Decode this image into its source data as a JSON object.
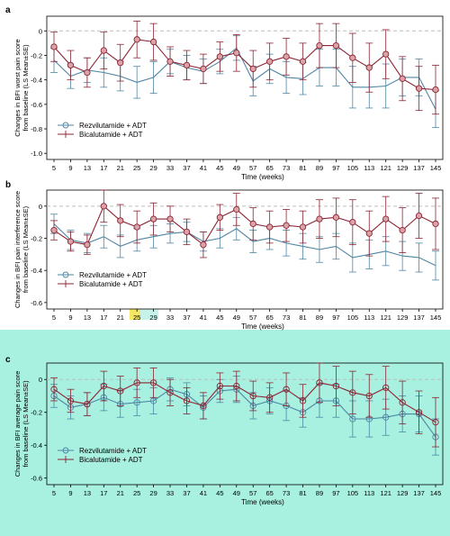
{
  "colors": {
    "rezvilutamide": "#4f86a3",
    "bicalutamide": "#8c2433",
    "marker_fill_a": "#d9a3a8",
    "marker_fill_b": "#d9a3a8",
    "marker_fill_c": "#bfbfbf",
    "panel_c_background": "#a8f0e0",
    "baseline": "#bdbdbd",
    "axis": "#000000"
  },
  "chart_data": [
    {
      "type": "line",
      "panel_label": "a",
      "ylabel_line1": "Changes in BFI worst pain score",
      "ylabel_line2": "from baseline (LS Mean±SE)",
      "xlabel": "Time (weeks)",
      "ylim": [
        -1.05,
        0.12
      ],
      "yticks": [
        0,
        -0.2,
        -0.4,
        -0.6,
        -0.8,
        -1.0
      ],
      "ytick_labels": [
        "0",
        "-0.2",
        "-0.4",
        "-0.6",
        "-0.8",
        "-1.0"
      ],
      "x_tick_labels": [
        "5",
        "9",
        "13",
        "17",
        "21",
        "25",
        "29",
        "33",
        "37",
        "41",
        "45",
        "49",
        "57",
        "65",
        "73",
        "81",
        "89",
        "97",
        "105",
        "113",
        "121",
        "129",
        "137",
        "145"
      ],
      "reference_line": 0,
      "legend_position": "bottom-left",
      "series": [
        {
          "name": "Rezvilutamide + ADT",
          "marker": "circle",
          "values": [
            -0.24,
            -0.37,
            -0.32,
            -0.34,
            -0.37,
            -0.42,
            -0.38,
            -0.25,
            -0.3,
            -0.33,
            -0.25,
            -0.14,
            -0.41,
            -0.31,
            -0.38,
            -0.39,
            -0.3,
            -0.3,
            -0.46,
            -0.46,
            -0.45,
            -0.38,
            -0.38,
            -0.64
          ],
          "errors": [
            0.1,
            0.1,
            0.1,
            0.12,
            0.12,
            0.13,
            0.13,
            0.1,
            0.1,
            0.1,
            0.1,
            0.1,
            0.12,
            0.12,
            0.13,
            0.13,
            0.15,
            0.15,
            0.17,
            0.17,
            0.18,
            0.15,
            0.15,
            0.15
          ]
        },
        {
          "name": "Bicalutamide + ADT",
          "marker": "circle",
          "values": [
            -0.13,
            -0.28,
            -0.34,
            -0.16,
            -0.26,
            -0.07,
            -0.09,
            -0.25,
            -0.28,
            -0.31,
            -0.21,
            -0.18,
            -0.31,
            -0.25,
            -0.21,
            -0.25,
            -0.12,
            -0.12,
            -0.22,
            -0.3,
            -0.19,
            -0.39,
            -0.47,
            -0.48
          ],
          "errors": [
            0.12,
            0.12,
            0.12,
            0.15,
            0.15,
            0.15,
            0.15,
            0.12,
            0.12,
            0.12,
            0.12,
            0.15,
            0.15,
            0.15,
            0.15,
            0.15,
            0.18,
            0.18,
            0.2,
            0.2,
            0.2,
            0.18,
            0.18,
            0.2
          ]
        }
      ]
    },
    {
      "type": "line",
      "panel_label": "b",
      "ylabel_line1": "Changes in BFI pain interference score",
      "ylabel_line2": "from baseline (LS Mean±SE)",
      "xlabel": "Time (weeks)",
      "ylim": [
        -0.64,
        0.1
      ],
      "yticks": [
        0,
        -0.2,
        -0.4,
        -0.6
      ],
      "ytick_labels": [
        "0",
        "-0.2",
        "-0.4",
        "-0.6"
      ],
      "x_tick_labels": [
        "5",
        "9",
        "13",
        "17",
        "21",
        "25",
        "29",
        "33",
        "37",
        "41",
        "45",
        "49",
        "57",
        "65",
        "73",
        "81",
        "89",
        "97",
        "105",
        "113",
        "121",
        "129",
        "137",
        "145"
      ],
      "reference_line": 0,
      "legend_position": "bottom-left",
      "series": [
        {
          "name": "Rezvilutamide + ADT",
          "marker": "circle",
          "values": [
            -0.11,
            -0.21,
            -0.23,
            -0.19,
            -0.25,
            -0.21,
            -0.19,
            -0.17,
            -0.16,
            -0.22,
            -0.2,
            -0.14,
            -0.22,
            -0.2,
            -0.23,
            -0.25,
            -0.27,
            -0.25,
            -0.32,
            -0.3,
            -0.28,
            -0.31,
            -0.32,
            -0.37
          ],
          "errors": [
            0.06,
            0.06,
            0.06,
            0.07,
            0.07,
            0.07,
            0.07,
            0.06,
            0.06,
            0.06,
            0.06,
            0.07,
            0.07,
            0.07,
            0.08,
            0.08,
            0.08,
            0.08,
            0.09,
            0.09,
            0.09,
            0.09,
            0.09,
            0.09
          ]
        },
        {
          "name": "Bicalutamide + ADT",
          "marker": "circle",
          "values": [
            -0.15,
            -0.22,
            -0.24,
            0.0,
            -0.09,
            -0.13,
            -0.08,
            -0.08,
            -0.16,
            -0.24,
            -0.07,
            -0.02,
            -0.11,
            -0.13,
            -0.12,
            -0.13,
            -0.08,
            -0.07,
            -0.1,
            -0.17,
            -0.08,
            -0.15,
            -0.06,
            -0.11
          ],
          "errors": [
            0.06,
            0.06,
            0.06,
            0.1,
            0.1,
            0.1,
            0.1,
            0.08,
            0.08,
            0.08,
            0.08,
            0.1,
            0.1,
            0.1,
            0.1,
            0.1,
            0.12,
            0.12,
            0.14,
            0.14,
            0.14,
            0.14,
            0.14,
            0.16
          ]
        }
      ]
    },
    {
      "type": "line",
      "panel_label": "c",
      "ylabel_line1": "Changes in BFI average pain score",
      "ylabel_line2": "from baseline (LS Mean±SE)",
      "xlabel": "Time (weeks)",
      "ylim": [
        -0.64,
        0.1
      ],
      "yticks": [
        0,
        -0.2,
        -0.4,
        -0.6
      ],
      "ytick_labels": [
        "0",
        "-0.2",
        "-0.4",
        "-0.6"
      ],
      "x_tick_labels": [
        "5",
        "9",
        "13",
        "17",
        "21",
        "25",
        "29",
        "33",
        "37",
        "41",
        "45",
        "49",
        "57",
        "65",
        "73",
        "81",
        "89",
        "97",
        "105",
        "113",
        "121",
        "129",
        "137",
        "145"
      ],
      "reference_line": 0,
      "legend_position": "bottom-left",
      "series": [
        {
          "name": "Rezvilutamide + ADT",
          "marker": "circle",
          "values": [
            -0.1,
            -0.17,
            -0.15,
            -0.11,
            -0.15,
            -0.14,
            -0.13,
            -0.06,
            -0.09,
            -0.17,
            -0.07,
            -0.06,
            -0.16,
            -0.13,
            -0.16,
            -0.2,
            -0.13,
            -0.13,
            -0.24,
            -0.24,
            -0.23,
            -0.21,
            -0.21,
            -0.35
          ],
          "errors": [
            0.07,
            0.07,
            0.07,
            0.08,
            0.08,
            0.08,
            0.08,
            0.07,
            0.07,
            0.07,
            0.07,
            0.08,
            0.08,
            0.08,
            0.09,
            0.09,
            0.1,
            0.1,
            0.11,
            0.11,
            0.11,
            0.11,
            0.11,
            0.11
          ]
        },
        {
          "name": "Bicalutamide + ADT",
          "marker": "circle",
          "values": [
            -0.06,
            -0.13,
            -0.15,
            -0.04,
            -0.07,
            -0.02,
            -0.02,
            -0.08,
            -0.13,
            -0.16,
            -0.04,
            -0.04,
            -0.1,
            -0.11,
            -0.06,
            -0.13,
            -0.02,
            -0.04,
            -0.08,
            -0.1,
            -0.05,
            -0.14,
            -0.2,
            -0.26
          ],
          "errors": [
            0.07,
            0.07,
            0.07,
            0.09,
            0.09,
            0.09,
            0.09,
            0.08,
            0.08,
            0.08,
            0.08,
            0.09,
            0.09,
            0.09,
            0.1,
            0.1,
            0.12,
            0.12,
            0.13,
            0.13,
            0.13,
            0.13,
            0.13,
            0.15
          ]
        }
      ]
    }
  ]
}
